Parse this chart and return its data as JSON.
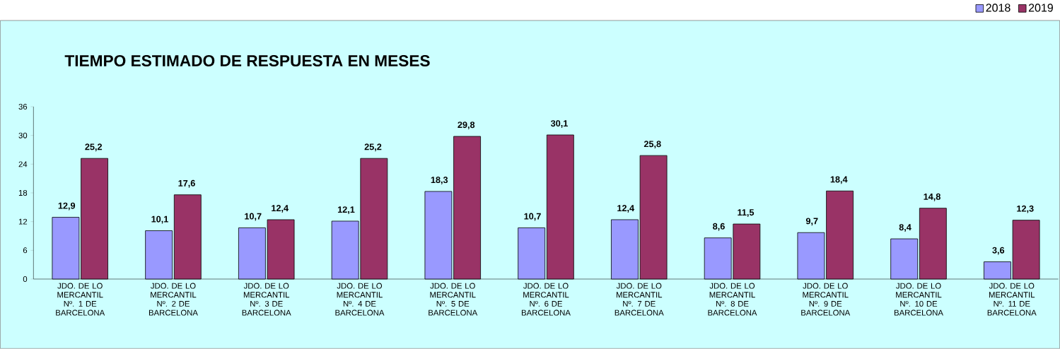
{
  "chart_data": {
    "type": "bar",
    "title": "TIEMPO ESTIMADO DE RESPUESTA  EN MESES",
    "categories": [
      "JDO.  DE LO MERCANTIL Nº. 1 DE BARCELONA",
      "JDO.  DE LO MERCANTIL Nº. 2 DE BARCELONA",
      "JDO.  DE LO MERCANTIL Nº. 3 DE BARCELONA",
      "JDO.  DE LO MERCANTIL Nº. 4 DE BARCELONA",
      "JDO.  DE LO MERCANTIL Nº. 5 DE BARCELONA",
      "JDO.  DE LO MERCANTIL Nº. 6 DE BARCELONA",
      "JDO.  DE LO MERCANTIL Nº. 7 DE BARCELONA",
      "JDO.  DE LO MERCANTIL Nº. 8 DE BARCELONA",
      "JDO.  DE LO MERCANTIL Nº. 9 DE BARCELONA",
      "JDO.  DE LO MERCANTIL Nº. 10 DE BARCELONA",
      "JDO.  DE LO MERCANTIL Nº. 11 DE BARCELONA"
    ],
    "series": [
      {
        "name": "2018",
        "color": "#9999ff",
        "values": [
          12.9,
          10.1,
          10.7,
          12.1,
          18.3,
          10.7,
          12.4,
          8.6,
          9.7,
          8.4,
          3.6
        ],
        "value_labels": [
          "12,9",
          "10,1",
          "10,7",
          "12,1",
          "18,3",
          "10,7",
          "12,4",
          "8,6",
          "9,7",
          "8,4",
          "3,6"
        ]
      },
      {
        "name": "2019",
        "color": "#993366",
        "values": [
          25.2,
          17.6,
          12.4,
          25.2,
          29.8,
          30.1,
          25.8,
          11.5,
          18.4,
          14.8,
          12.3
        ],
        "value_labels": [
          "25,2",
          "17,6",
          "12,4",
          "25,2",
          "29,8",
          "30,1",
          "25,8",
          "11,5",
          "18,4",
          "14,8",
          "12,3"
        ]
      }
    ],
    "ylim": [
      0,
      36
    ],
    "yticks": [
      0,
      6,
      12,
      18,
      24,
      30,
      36
    ],
    "grid": false,
    "legend": "top right"
  }
}
